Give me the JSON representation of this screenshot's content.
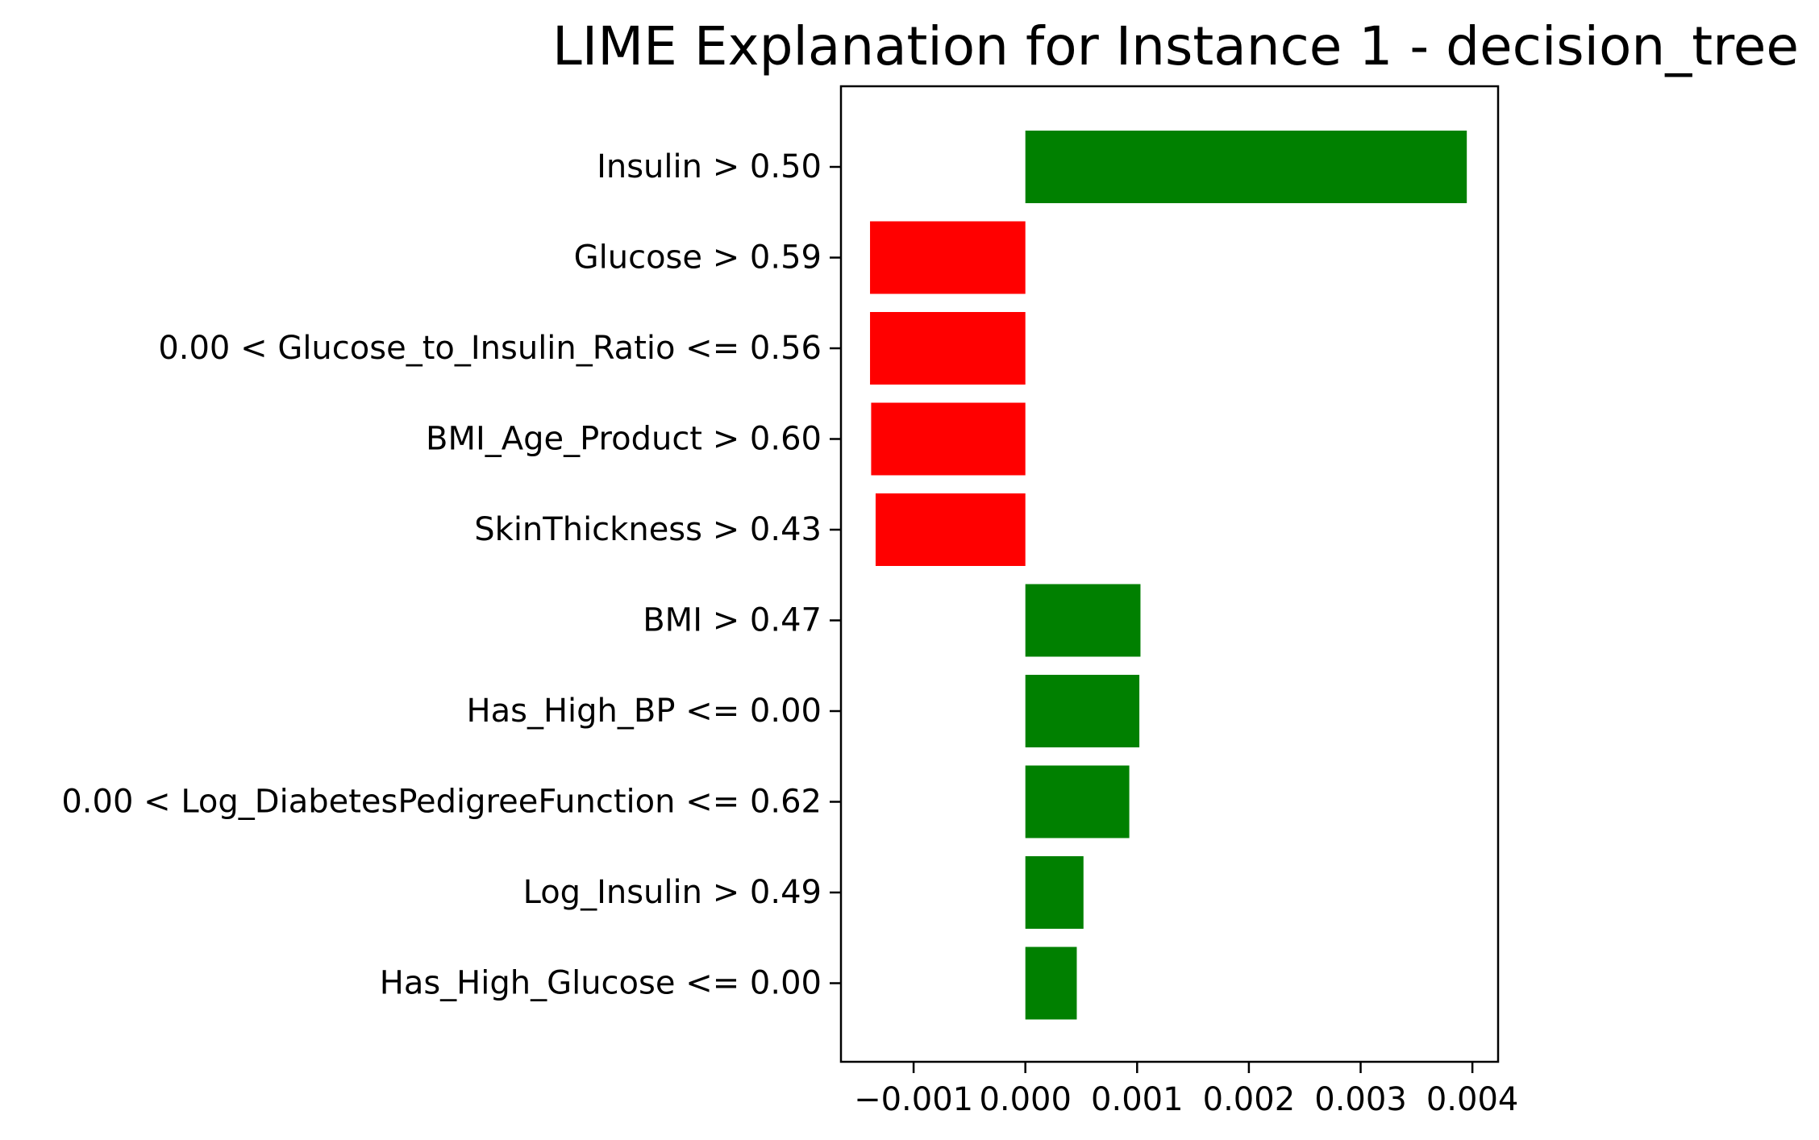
{
  "chart_data": {
    "type": "bar",
    "orientation": "horizontal",
    "title": "LIME Explanation for Instance 1 - decision_tree",
    "xlabel": "",
    "ylabel": "",
    "categories": [
      "Insulin > 0.50",
      "Glucose > 0.59",
      "0.00 < Glucose_to_Insulin_Ratio <= 0.56",
      "BMI_Age_Product > 0.60",
      "SkinThickness > 0.43",
      "BMI > 0.47",
      "Has_High_BP <= 0.00",
      "0.00 < Log_DiabetesPedigreeFunction <= 0.62",
      "Log_Insulin > 0.49",
      "Has_High_Glucose <= 0.00"
    ],
    "values": [
      0.00395,
      -0.00139,
      -0.00139,
      -0.00138,
      -0.00134,
      0.00103,
      0.00102,
      0.00093,
      0.00052,
      0.00046
    ],
    "xlim": [
      -0.00165,
      0.00423
    ],
    "xticks": [
      -0.001,
      0.0,
      0.001,
      0.002,
      0.003,
      0.004
    ],
    "xtick_labels": [
      "−0.001",
      "0.000",
      "0.001",
      "0.002",
      "0.003",
      "0.004"
    ],
    "colors": {
      "positive": "#008000",
      "negative": "#ff0000"
    },
    "grid": false,
    "legend": "none"
  }
}
